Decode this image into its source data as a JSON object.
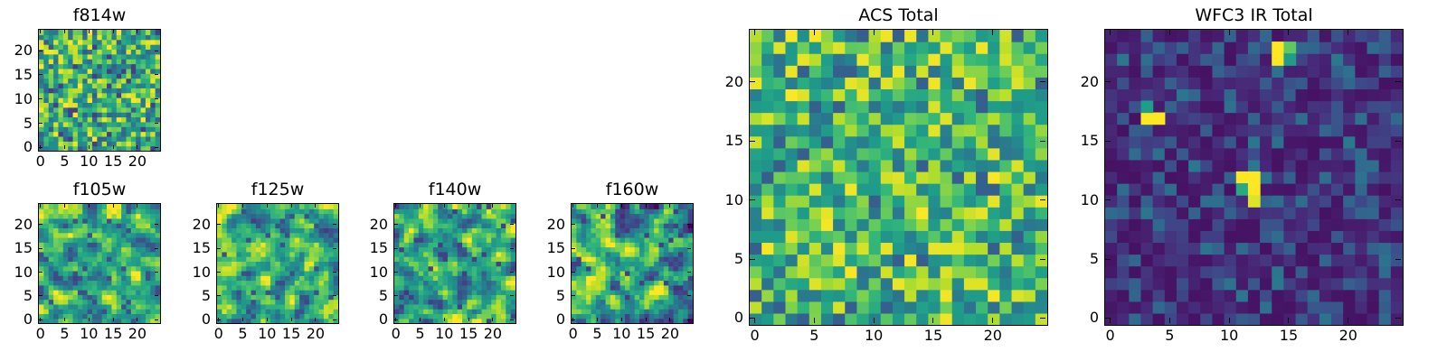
{
  "chart_data": [
    {
      "id": "f814w",
      "type": "heatmap",
      "title": "f814w",
      "grid": [
        25,
        25
      ],
      "xlim": [
        0,
        24
      ],
      "ylim": [
        0,
        24
      ],
      "xticks": [
        "0",
        "5",
        "10",
        "15",
        "20"
      ],
      "yticks": [
        "0",
        "5",
        "10",
        "15",
        "20"
      ],
      "seed": 11,
      "mode": "noise",
      "low": 0.2,
      "high": 1.0
    },
    {
      "id": "f105w",
      "type": "heatmap",
      "title": "f105w",
      "grid": [
        25,
        25
      ],
      "xlim": [
        0,
        24
      ],
      "ylim": [
        0,
        24
      ],
      "xticks": [
        "0",
        "5",
        "10",
        "15",
        "20"
      ],
      "yticks": [
        "0",
        "5",
        "10",
        "15",
        "20"
      ],
      "seed": 23,
      "mode": "smooth",
      "low": 0.25,
      "high": 1.0
    },
    {
      "id": "f125w",
      "type": "heatmap",
      "title": "f125w",
      "grid": [
        25,
        25
      ],
      "xlim": [
        0,
        24
      ],
      "ylim": [
        0,
        24
      ],
      "xticks": [
        "0",
        "5",
        "10",
        "15",
        "20"
      ],
      "yticks": [
        "0",
        "5",
        "10",
        "15",
        "20"
      ],
      "seed": 37,
      "mode": "smooth",
      "low": 0.25,
      "high": 1.0
    },
    {
      "id": "f140w",
      "type": "heatmap",
      "title": "f140w",
      "grid": [
        25,
        25
      ],
      "xlim": [
        0,
        24
      ],
      "ylim": [
        0,
        24
      ],
      "xticks": [
        "0",
        "5",
        "10",
        "15",
        "20"
      ],
      "yticks": [
        "0",
        "5",
        "10",
        "15",
        "20"
      ],
      "seed": 41,
      "mode": "smooth",
      "low": 0.2,
      "high": 1.0
    },
    {
      "id": "f160w",
      "type": "heatmap",
      "title": "f160w",
      "grid": [
        25,
        25
      ],
      "xlim": [
        0,
        24
      ],
      "ylim": [
        0,
        24
      ],
      "xticks": [
        "0",
        "5",
        "10",
        "15",
        "20"
      ],
      "yticks": [
        "0",
        "5",
        "10",
        "15",
        "20"
      ],
      "seed": 53,
      "mode": "smooth",
      "low": 0.2,
      "high": 1.0
    },
    {
      "id": "acs_total",
      "type": "heatmap",
      "title": "ACS Total",
      "grid": [
        25,
        25
      ],
      "xlim": [
        0,
        24
      ],
      "ylim": [
        0,
        24
      ],
      "xticks": [
        "0",
        "5",
        "10",
        "15",
        "20"
      ],
      "yticks": [
        "0",
        "5",
        "10",
        "15",
        "20"
      ],
      "seed": 67,
      "mode": "noise",
      "low": 0.3,
      "high": 1.0
    },
    {
      "id": "wfc3_ir_total",
      "type": "heatmap",
      "title": "WFC3 IR Total",
      "grid": [
        25,
        25
      ],
      "xlim": [
        0,
        24
      ],
      "ylim": [
        0,
        24
      ],
      "xticks": [
        "0",
        "5",
        "10",
        "15",
        "20"
      ],
      "yticks": [
        "0",
        "5",
        "10",
        "15",
        "20"
      ],
      "seed": 79,
      "mode": "background",
      "low": 0.05,
      "high": 0.4,
      "bright_pixels": [
        {
          "x": 14,
          "y": 23,
          "v": 1.0
        },
        {
          "x": 14,
          "y": 22,
          "v": 1.0
        },
        {
          "x": 15,
          "y": 23,
          "v": 0.75
        },
        {
          "x": 15,
          "y": 22,
          "v": 0.55
        },
        {
          "x": 3,
          "y": 17,
          "v": 1.0
        },
        {
          "x": 4,
          "y": 17,
          "v": 1.0
        },
        {
          "x": 3,
          "y": 18,
          "v": 0.55
        },
        {
          "x": 11,
          "y": 12,
          "v": 1.0
        },
        {
          "x": 12,
          "y": 12,
          "v": 1.0
        },
        {
          "x": 11,
          "y": 11,
          "v": 0.6
        },
        {
          "x": 12,
          "y": 11,
          "v": 1.0
        },
        {
          "x": 12,
          "y": 10,
          "v": 0.95
        }
      ]
    }
  ],
  "colormap": [
    "#440154",
    "#482878",
    "#3e4989",
    "#31688e",
    "#26828e",
    "#1f9e89",
    "#35b779",
    "#6ece58",
    "#b5de2b",
    "#fde725"
  ]
}
